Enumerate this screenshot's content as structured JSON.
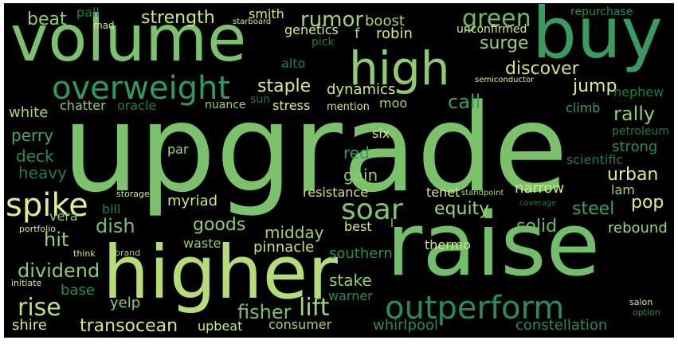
{
  "cloud": {
    "background": "#000000",
    "words": [
      {
        "text": "upgrade",
        "color": "#7cc16c"
      },
      {
        "text": "raise",
        "color": "#73be6a"
      },
      {
        "text": "higher",
        "color": "#b6dc79"
      },
      {
        "text": "volume",
        "color": "#7bc16e"
      },
      {
        "text": "buy",
        "color": "#3a9a62"
      },
      {
        "text": "high",
        "color": "#8fcb70"
      },
      {
        "text": "outperform",
        "color": "#2a8a59"
      },
      {
        "text": "overweight",
        "color": "#2e9a5e"
      },
      {
        "text": "spike",
        "color": "#d9ee8c"
      },
      {
        "text": "soar",
        "color": "#82c56d"
      },
      {
        "text": "green",
        "color": "#6cba67"
      },
      {
        "text": "rise",
        "color": "#bde07e"
      },
      {
        "text": "fisher",
        "color": "#7cc16c"
      },
      {
        "text": "lift",
        "color": "#a7d576"
      },
      {
        "text": "transocean",
        "color": "#d2ea86"
      },
      {
        "text": "rumor",
        "color": "#a0d274"
      },
      {
        "text": "strength",
        "color": "#cce883"
      },
      {
        "text": "equity",
        "color": "#a5d475"
      },
      {
        "text": "goods",
        "color": "#8fcb70"
      },
      {
        "text": "dish",
        "color": "#78bf6b"
      },
      {
        "text": "hit",
        "color": "#9ad073"
      },
      {
        "text": "dividend",
        "color": "#8ccb70"
      },
      {
        "text": "midday",
        "color": "#a0d274"
      },
      {
        "text": "surge",
        "color": "#99cf72"
      },
      {
        "text": "discover",
        "color": "#cbe782"
      },
      {
        "text": "staple",
        "color": "#d5ec88"
      },
      {
        "text": "rally",
        "color": "#8ccb70"
      },
      {
        "text": "call",
        "color": "#3f9f63"
      },
      {
        "text": "jump",
        "color": "#d9ee8c"
      },
      {
        "text": "dynamics",
        "color": "#cce883"
      },
      {
        "text": "boost",
        "color": "#a5d475"
      },
      {
        "text": "robin",
        "color": "#d2ea86"
      },
      {
        "text": "urban",
        "color": "#d9ee8c"
      },
      {
        "text": "narrow",
        "color": "#cce883"
      },
      {
        "text": "steel",
        "color": "#3b9b62"
      },
      {
        "text": "pop",
        "color": "#d9ee8c"
      },
      {
        "text": "solid",
        "color": "#6cba67"
      },
      {
        "text": "rebound",
        "color": "#a5d475"
      },
      {
        "text": "gain",
        "color": "#8fcb70"
      },
      {
        "text": "red",
        "color": "#3b9b62"
      },
      {
        "text": "stake",
        "color": "#8fcb70"
      },
      {
        "text": "perry",
        "color": "#4aa865"
      },
      {
        "text": "deck",
        "color": "#2a8a59"
      },
      {
        "text": "heavy",
        "color": "#1e7c4f"
      },
      {
        "text": "white",
        "color": "#a5d475"
      },
      {
        "text": "beat",
        "color": "#8fcb70"
      },
      {
        "text": "chatter",
        "color": "#8fcb70"
      },
      {
        "text": "oracle",
        "color": "#1e7c4f"
      },
      {
        "text": "nuance",
        "color": "#a5d475"
      },
      {
        "text": "sun",
        "color": "#1e7c4f"
      },
      {
        "text": "stress",
        "color": "#d5ec88"
      },
      {
        "text": "mention",
        "color": "#d2ea86"
      },
      {
        "text": "moo",
        "color": "#a5d475"
      },
      {
        "text": "climb",
        "color": "#3b9b62"
      },
      {
        "text": "nephew",
        "color": "#1e7c4f"
      },
      {
        "text": "petroleum",
        "color": "#1e7c4f"
      },
      {
        "text": "strong",
        "color": "#2a8a59"
      },
      {
        "text": "scientific",
        "color": "#1e7c4f"
      },
      {
        "text": "lam",
        "color": "#a5d475"
      },
      {
        "text": "tenet",
        "color": "#d2ea86"
      },
      {
        "text": "resistance",
        "color": "#cce883"
      },
      {
        "text": "myriad",
        "color": "#cce883"
      },
      {
        "text": "bill",
        "color": "#1e7c4f"
      },
      {
        "text": "vera",
        "color": "#8fcb70"
      },
      {
        "text": "par",
        "color": "#a5d475"
      },
      {
        "text": "six",
        "color": "#d9ee8c"
      },
      {
        "text": "waste",
        "color": "#8fcb70"
      },
      {
        "text": "pinnacle",
        "color": "#cce883"
      },
      {
        "text": "best",
        "color": "#d2ea86"
      },
      {
        "text": "thermo",
        "color": "#cce883"
      },
      {
        "text": "southern",
        "color": "#2a8a59"
      },
      {
        "text": "base",
        "color": "#2a8a59"
      },
      {
        "text": "yelp",
        "color": "#8fcb70"
      },
      {
        "text": "warner",
        "color": "#2a8a59"
      },
      {
        "text": "consumer",
        "color": "#a5d475"
      },
      {
        "text": "whirlpool",
        "color": "#2a8a59"
      },
      {
        "text": "constellation",
        "color": "#2a8a59"
      },
      {
        "text": "shire",
        "color": "#d2ea86"
      },
      {
        "text": "upbeat",
        "color": "#cce883"
      },
      {
        "text": "smith",
        "color": "#d2ea86"
      },
      {
        "text": "genetics",
        "color": "#d2ea86"
      },
      {
        "text": "f",
        "color": "#a5d475"
      },
      {
        "text": "pick",
        "color": "#1e7c4f"
      },
      {
        "text": "alto",
        "color": "#1e7c4f"
      },
      {
        "text": "unconfirmed",
        "color": "#d2ea86"
      },
      {
        "text": "repurchase",
        "color": "#2a8a59"
      },
      {
        "text": "pall",
        "color": "#1e7c4f"
      },
      {
        "text": "mad",
        "color": "#d2ea86"
      },
      {
        "text": "starboard",
        "color": "#d2ea86"
      },
      {
        "text": "semiconductor",
        "color": "#d9ee8c"
      },
      {
        "text": "standpoint",
        "color": "#a5d475"
      },
      {
        "text": "coverage",
        "color": "#1e7c4f"
      },
      {
        "text": "storage",
        "color": "#d2ea86"
      },
      {
        "text": "portfolio",
        "color": "#d2ea86"
      },
      {
        "text": "think",
        "color": "#d2ea86"
      },
      {
        "text": "brand",
        "color": "#a5d475"
      },
      {
        "text": "initiate",
        "color": "#d2ea86"
      },
      {
        "text": "salon",
        "color": "#d2ea86"
      },
      {
        "text": "option",
        "color": "#2a8a59"
      },
      {
        "text": "l",
        "color": "#a5d475"
      }
    ]
  }
}
